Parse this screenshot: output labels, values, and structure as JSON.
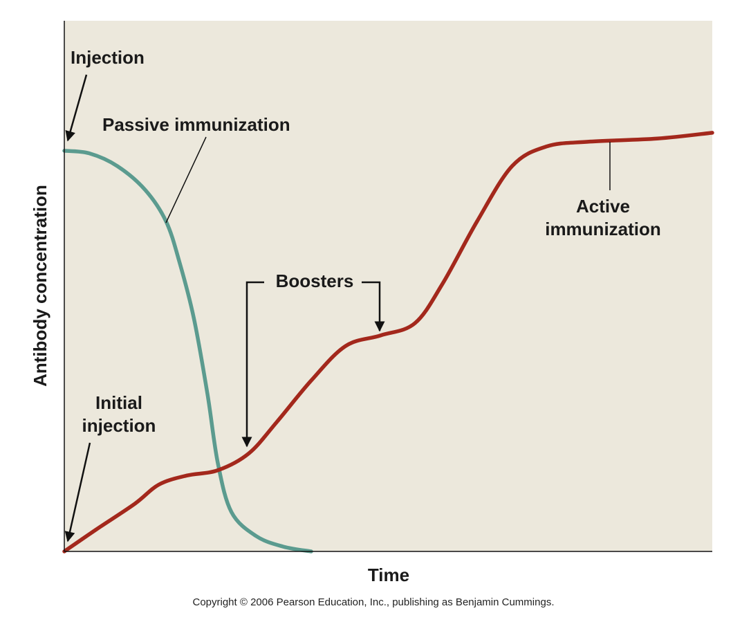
{
  "chart_data": {
    "type": "line",
    "xlabel": "Time",
    "ylabel": "Antibody concentration",
    "xlim": [
      0,
      100
    ],
    "ylim": [
      0,
      100
    ],
    "series": [
      {
        "name": "Passive immunization",
        "color": "#5b9b8f",
        "x": [
          0,
          3.9,
          8.2,
          12.5,
          15.7,
          17.8,
          20.0,
          22.1,
          23.7,
          25.8,
          29.6,
          33.8,
          38.1
        ],
        "values": [
          75.5,
          75.0,
          72.6,
          68.1,
          62.2,
          54.4,
          43.9,
          29.6,
          16.6,
          7.4,
          2.9,
          0.9,
          0
        ]
      },
      {
        "name": "Active immunization",
        "color": "#a3281c",
        "x": [
          0,
          5.0,
          10.9,
          14.6,
          18.9,
          23.7,
          28.5,
          32.8,
          38.1,
          43.4,
          48.8,
          54.1,
          58.4,
          63.7,
          69.1,
          74.4,
          80.8,
          91.5,
          100
        ],
        "values": [
          0,
          4.2,
          9.0,
          12.6,
          14.3,
          15.3,
          18.5,
          24.4,
          32.2,
          38.7,
          40.7,
          43.0,
          50.5,
          62.2,
          72.6,
          76.3,
          77.2,
          77.8,
          78.9
        ]
      }
    ],
    "annotations": [
      [
        "Injection"
      ],
      [
        "Passive immunization"
      ],
      [
        "Initial",
        "injection"
      ],
      [
        "Boosters"
      ],
      [
        "Active",
        "immunization"
      ]
    ],
    "note": "Copyright © 2006 Pearson Education, Inc., publishing as Benjamin Cummings."
  }
}
